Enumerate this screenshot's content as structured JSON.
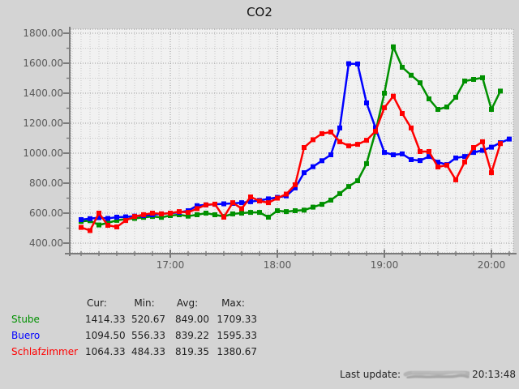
{
  "title": "CO2",
  "chart_data": {
    "type": "line",
    "title": "CO2",
    "grid": "dotted",
    "legend_position": "bottom-table",
    "x_start": "16:10",
    "x_step_minutes": 5,
    "x": [
      "16:10",
      "16:15",
      "16:20",
      "16:25",
      "16:30",
      "16:35",
      "16:40",
      "16:45",
      "16:50",
      "16:55",
      "17:00",
      "17:05",
      "17:10",
      "17:15",
      "17:20",
      "17:25",
      "17:30",
      "17:35",
      "17:40",
      "17:45",
      "17:50",
      "17:55",
      "18:00",
      "18:05",
      "18:10",
      "18:15",
      "18:20",
      "18:25",
      "18:30",
      "18:35",
      "18:40",
      "18:45",
      "18:50",
      "18:55",
      "19:00",
      "19:05",
      "19:10",
      "19:15",
      "19:20",
      "19:25",
      "19:30",
      "19:35",
      "19:40",
      "19:45",
      "19:50",
      "19:55",
      "20:00",
      "20:05",
      "20:10"
    ],
    "x_ticks_major": [
      "17:00",
      "18:00",
      "19:00",
      "20:00"
    ],
    "ylim": [
      400,
      1800
    ],
    "y_tick_step_major": 200,
    "y_tick_step_minor": 100,
    "y_tick_labels": [
      "400.00",
      "600.00",
      "800.00",
      "1000.00",
      "1200.00",
      "1400.00",
      "1600.00",
      "1800.00"
    ],
    "series": [
      {
        "name": "Stube",
        "color": "#009000",
        "values": [
          545,
          550,
          521,
          535,
          552,
          560,
          565,
          572,
          578,
          572,
          584,
          589,
          580,
          589,
          600,
          589,
          578,
          595,
          600,
          605,
          605,
          573,
          616,
          610,
          616,
          620,
          640,
          659,
          687,
          730,
          778,
          816,
          930,
          1141,
          1400,
          1709,
          1573,
          1520,
          1470,
          1362,
          1292,
          1308,
          1373,
          1481,
          1492,
          1503,
          1292,
          1414,
          null
        ]
      },
      {
        "name": "Buero",
        "color": "#0000ff",
        "values": [
          557,
          563,
          570,
          565,
          573,
          575,
          580,
          584,
          589,
          595,
          600,
          605,
          616,
          650,
          655,
          659,
          662,
          665,
          670,
          676,
          685,
          695,
          705,
          715,
          768,
          870,
          910,
          950,
          989,
          1168,
          1597,
          1595,
          1335,
          1170,
          1005,
          989,
          995,
          957,
          951,
          978,
          940,
          924,
          968,
          978,
          1005,
          1019,
          1040,
          1070,
          1094
        ]
      },
      {
        "name": "Schlafzimmer",
        "color": "#ff0000",
        "values": [
          505,
          484,
          600,
          519,
          508,
          551,
          578,
          590,
          600,
          595,
          600,
          610,
          605,
          630,
          655,
          660,
          573,
          670,
          630,
          708,
          681,
          670,
          700,
          727,
          789,
          1038,
          1090,
          1130,
          1141,
          1076,
          1049,
          1059,
          1086,
          1146,
          1303,
          1380,
          1265,
          1168,
          1011,
          1011,
          908,
          920,
          822,
          941,
          1038,
          1076,
          870,
          1064,
          null
        ]
      }
    ]
  },
  "legend": {
    "columns": [
      "Cur:",
      "Min:",
      "Avg:",
      "Max:"
    ],
    "rows": [
      {
        "label": "Stube",
        "color": "#009000",
        "values": [
          "1414.33",
          "520.67",
          "849.00",
          "1709.33"
        ]
      },
      {
        "label": "Buero",
        "color": "#0000ff",
        "values": [
          "1094.50",
          "556.33",
          "839.22",
          "1595.33"
        ]
      },
      {
        "label": "Schlafzimmer",
        "color": "#ff0000",
        "values": [
          "1064.33",
          "484.33",
          "819.35",
          "1380.67"
        ]
      }
    ]
  },
  "footer": {
    "label": "Last update:",
    "time": "20:13:48",
    "date_redacted": true
  },
  "colors": {
    "page_background": "#d4d4d4",
    "plot_background": "#f1f1f1",
    "grid_minor": "#c9c9c9",
    "grid_major": "#999999",
    "axis": "#7a7a7a",
    "axis_text": "#5a5a5a",
    "title_text": "#111111",
    "legend_text": "#1f1f1f",
    "scribble": "#b0b0b0"
  }
}
